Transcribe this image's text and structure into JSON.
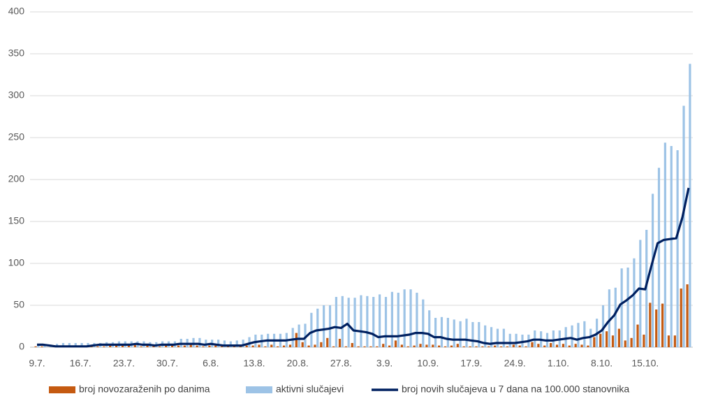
{
  "chart_data": {
    "type": "combo",
    "categories": [
      "9.7.",
      null,
      null,
      null,
      null,
      null,
      null,
      "16.7.",
      null,
      null,
      null,
      null,
      null,
      null,
      "23.7.",
      null,
      null,
      null,
      null,
      null,
      null,
      "30.7.",
      null,
      null,
      null,
      null,
      null,
      null,
      "6.8.",
      null,
      null,
      null,
      null,
      null,
      null,
      "13.8.",
      null,
      null,
      null,
      null,
      null,
      null,
      "20.8.",
      null,
      null,
      null,
      null,
      null,
      null,
      "27.8.",
      null,
      null,
      null,
      null,
      null,
      null,
      "3.9.",
      null,
      null,
      null,
      null,
      null,
      null,
      "10.9.",
      null,
      null,
      null,
      null,
      null,
      null,
      "17.9.",
      null,
      null,
      null,
      null,
      null,
      null,
      "24.9.",
      null,
      null,
      null,
      null,
      null,
      null,
      "1.10.",
      null,
      null,
      null,
      null,
      null,
      null,
      "8.10.",
      null,
      null,
      null,
      null,
      null,
      null,
      "15.10.",
      null,
      null,
      null,
      null,
      null,
      null,
      null
    ],
    "series": [
      {
        "name": "broj novozaraženih po danima",
        "type": "bar",
        "color": "#c55a11",
        "values": [
          1,
          1,
          0,
          1,
          1,
          1,
          1,
          1,
          1,
          1,
          1,
          1,
          2,
          2,
          2,
          2,
          3,
          1,
          2,
          2,
          1,
          2,
          2,
          2,
          2,
          3,
          2,
          1,
          2,
          2,
          1,
          1,
          1,
          1,
          2,
          2,
          3,
          1,
          3,
          1,
          2,
          3,
          17,
          6,
          2,
          3,
          6,
          11,
          1,
          10,
          1,
          5,
          1,
          1,
          1,
          1,
          4,
          2,
          8,
          3,
          1,
          2,
          4,
          3,
          3,
          2,
          1,
          2,
          4,
          1,
          1,
          1,
          1,
          1,
          2,
          1,
          1,
          3,
          2,
          1,
          6,
          4,
          2,
          5,
          3,
          4,
          2,
          4,
          3,
          2,
          12,
          16,
          19,
          14,
          22,
          8,
          11,
          27,
          15,
          53,
          45,
          52,
          14,
          14,
          70,
          75
        ]
      },
      {
        "name": "aktivni slučajevi",
        "type": "bar",
        "color": "#9dc3e6",
        "values": [
          4,
          3,
          3,
          4,
          5,
          5,
          5,
          5,
          5,
          5,
          5,
          6,
          6,
          7,
          7,
          7,
          7,
          7,
          6,
          6,
          7,
          7,
          7,
          10,
          10,
          11,
          11,
          9,
          9,
          9,
          8,
          7,
          8,
          9,
          12,
          15,
          15,
          16,
          16,
          16,
          17,
          23,
          27,
          28,
          41,
          46,
          50,
          50,
          60,
          61,
          59,
          59,
          62,
          61,
          60,
          63,
          60,
          66,
          65,
          69,
          69,
          65,
          57,
          44,
          35,
          36,
          35,
          33,
          31,
          34,
          30,
          30,
          26,
          24,
          22,
          22,
          16,
          16,
          15,
          15,
          20,
          19,
          17,
          20,
          20,
          24,
          26,
          29,
          31,
          22,
          34,
          50,
          69,
          71,
          94,
          95,
          106,
          128,
          140,
          183,
          214,
          244,
          240,
          235,
          288,
          338
        ]
      },
      {
        "name": "broj novih slučajeva u 7 dana na 100.000 stanovnika",
        "type": "line",
        "color": "#002060",
        "values": [
          3,
          3,
          2,
          1,
          1,
          1,
          1,
          1,
          1,
          2,
          3,
          3,
          3,
          3,
          3,
          3,
          4,
          3,
          3,
          2,
          3,
          3,
          3,
          4,
          4,
          4,
          4,
          3,
          4,
          3,
          2,
          2,
          2,
          2,
          4,
          6,
          7,
          8,
          8,
          8,
          8,
          9,
          10,
          10,
          17,
          20,
          21,
          22,
          24,
          23,
          28,
          20,
          19,
          18,
          16,
          12,
          13,
          13,
          13,
          14,
          15,
          17,
          17,
          16,
          12,
          12,
          10,
          9,
          9,
          9,
          8,
          7,
          5,
          4,
          5,
          5,
          5,
          5,
          6,
          7,
          9,
          9,
          8,
          8,
          9,
          10,
          11,
          9,
          11,
          12,
          15,
          20,
          30,
          38,
          51,
          56,
          62,
          70,
          69,
          97,
          124,
          128,
          129,
          130,
          155,
          190
        ]
      }
    ],
    "ylim": [
      0,
      400
    ],
    "yticks": [
      0,
      50,
      100,
      150,
      200,
      250,
      300,
      350,
      400
    ],
    "grid": true,
    "legend": "bottom"
  }
}
